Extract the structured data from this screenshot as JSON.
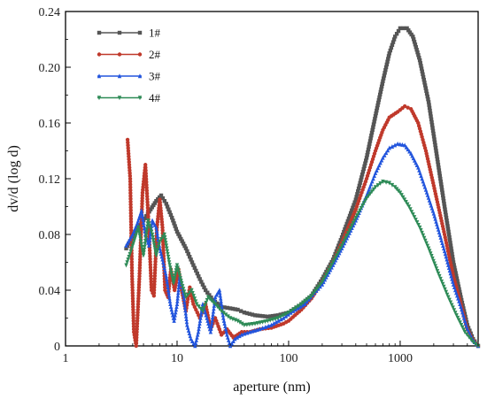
{
  "chart_data": {
    "type": "line",
    "xlabel": "aperture (nm)",
    "ylabel": "dv/d (log d)",
    "xscale": "log",
    "xlim": [
      1,
      5000
    ],
    "ylim": [
      0,
      0.24
    ],
    "xticks": [
      1,
      10,
      100,
      1000
    ],
    "xtick_labels": [
      "1",
      "10",
      "100",
      "1000"
    ],
    "yticks": [
      0,
      0.04,
      0.08,
      0.12,
      0.16,
      0.2,
      0.24
    ],
    "ytick_labels": [
      "0",
      "0.04",
      "0.08",
      "0.12",
      "0.16",
      "0.20",
      "0.24"
    ],
    "grid": false,
    "legend_position": "top-left",
    "series": [
      {
        "name": "1#",
        "color": "#555555",
        "marker": "square",
        "points": [
          [
            3.5,
            0.07
          ],
          [
            4.2,
            0.082
          ],
          [
            5,
            0.09
          ],
          [
            5.8,
            0.098
          ],
          [
            6.5,
            0.104
          ],
          [
            7.2,
            0.108
          ],
          [
            8,
            0.102
          ],
          [
            9,
            0.092
          ],
          [
            10,
            0.082
          ],
          [
            12,
            0.07
          ],
          [
            14,
            0.058
          ],
          [
            16,
            0.048
          ],
          [
            18,
            0.04
          ],
          [
            21,
            0.033
          ],
          [
            25,
            0.028
          ],
          [
            30,
            0.027
          ],
          [
            35,
            0.026
          ],
          [
            40,
            0.024
          ],
          [
            50,
            0.022
          ],
          [
            65,
            0.021
          ],
          [
            80,
            0.022
          ],
          [
            100,
            0.024
          ],
          [
            130,
            0.03
          ],
          [
            160,
            0.036
          ],
          [
            200,
            0.048
          ],
          [
            250,
            0.062
          ],
          [
            300,
            0.078
          ],
          [
            400,
            0.105
          ],
          [
            500,
            0.135
          ],
          [
            600,
            0.165
          ],
          [
            700,
            0.19
          ],
          [
            800,
            0.21
          ],
          [
            900,
            0.222
          ],
          [
            1000,
            0.228
          ],
          [
            1150,
            0.228
          ],
          [
            1300,
            0.222
          ],
          [
            1500,
            0.205
          ],
          [
            1800,
            0.175
          ],
          [
            2100,
            0.14
          ],
          [
            2500,
            0.1
          ],
          [
            3000,
            0.06
          ],
          [
            3500,
            0.035
          ],
          [
            4000,
            0.015
          ],
          [
            4500,
            0.005
          ],
          [
            5000,
            0
          ]
        ]
      },
      {
        "name": "2#",
        "color": "#c0392b",
        "marker": "circle",
        "points": [
          [
            3.6,
            0.148
          ],
          [
            3.8,
            0.12
          ],
          [
            3.95,
            0.05
          ],
          [
            4.1,
            0.01
          ],
          [
            4.3,
            0.0
          ],
          [
            4.6,
            0.05
          ],
          [
            4.9,
            0.11
          ],
          [
            5.2,
            0.13
          ],
          [
            5.5,
            0.095
          ],
          [
            5.9,
            0.04
          ],
          [
            6.2,
            0.036
          ],
          [
            6.6,
            0.085
          ],
          [
            7,
            0.105
          ],
          [
            7.4,
            0.085
          ],
          [
            7.8,
            0.04
          ],
          [
            8.3,
            0.035
          ],
          [
            8.8,
            0.055
          ],
          [
            9.5,
            0.04
          ],
          [
            10.3,
            0.055
          ],
          [
            11,
            0.04
          ],
          [
            12,
            0.025
          ],
          [
            13,
            0.042
          ],
          [
            14,
            0.03
          ],
          [
            16,
            0.02
          ],
          [
            18,
            0.03
          ],
          [
            20,
            0.012
          ],
          [
            22,
            0.02
          ],
          [
            25,
            0.008
          ],
          [
            28,
            0.012
          ],
          [
            32,
            0.006
          ],
          [
            38,
            0.01
          ],
          [
            45,
            0.01
          ],
          [
            55,
            0.012
          ],
          [
            70,
            0.013
          ],
          [
            90,
            0.016
          ],
          [
            100,
            0.018
          ],
          [
            130,
            0.026
          ],
          [
            160,
            0.034
          ],
          [
            200,
            0.046
          ],
          [
            250,
            0.06
          ],
          [
            300,
            0.074
          ],
          [
            400,
            0.098
          ],
          [
            500,
            0.12
          ],
          [
            600,
            0.14
          ],
          [
            700,
            0.155
          ],
          [
            800,
            0.164
          ],
          [
            950,
            0.168
          ],
          [
            1100,
            0.172
          ],
          [
            1250,
            0.17
          ],
          [
            1450,
            0.16
          ],
          [
            1700,
            0.14
          ],
          [
            2000,
            0.115
          ],
          [
            2500,
            0.08
          ],
          [
            3000,
            0.05
          ],
          [
            3500,
            0.03
          ],
          [
            4000,
            0.012
          ],
          [
            4500,
            0.004
          ],
          [
            5000,
            0
          ]
        ]
      },
      {
        "name": "3#",
        "color": "#2255dd",
        "marker": "triangle-up",
        "points": [
          [
            3.5,
            0.072
          ],
          [
            4,
            0.08
          ],
          [
            4.4,
            0.088
          ],
          [
            4.8,
            0.097
          ],
          [
            5.2,
            0.08
          ],
          [
            5.6,
            0.072
          ],
          [
            6,
            0.09
          ],
          [
            6.5,
            0.085
          ],
          [
            7,
            0.07
          ],
          [
            7.5,
            0.06
          ],
          [
            8,
            0.05
          ],
          [
            8.7,
            0.03
          ],
          [
            9.4,
            0.018
          ],
          [
            10,
            0.03
          ],
          [
            10.6,
            0.05
          ],
          [
            11.3,
            0.04
          ],
          [
            12.3,
            0.015
          ],
          [
            13.3,
            0.005
          ],
          [
            14.5,
            0.0
          ],
          [
            15.5,
            0.01
          ],
          [
            17,
            0.03
          ],
          [
            18.5,
            0.02
          ],
          [
            20,
            0.01
          ],
          [
            22,
            0.035
          ],
          [
            24,
            0.04
          ],
          [
            26,
            0.02
          ],
          [
            28,
            0.008
          ],
          [
            30,
            0.0
          ],
          [
            33,
            0.005
          ],
          [
            38,
            0.008
          ],
          [
            45,
            0.01
          ],
          [
            55,
            0.012
          ],
          [
            70,
            0.015
          ],
          [
            90,
            0.02
          ],
          [
            110,
            0.025
          ],
          [
            140,
            0.03
          ],
          [
            170,
            0.038
          ],
          [
            200,
            0.044
          ],
          [
            250,
            0.058
          ],
          [
            300,
            0.07
          ],
          [
            400,
            0.09
          ],
          [
            500,
            0.108
          ],
          [
            600,
            0.124
          ],
          [
            700,
            0.135
          ],
          [
            800,
            0.142
          ],
          [
            950,
            0.145
          ],
          [
            1100,
            0.144
          ],
          [
            1250,
            0.138
          ],
          [
            1450,
            0.128
          ],
          [
            1700,
            0.112
          ],
          [
            2000,
            0.095
          ],
          [
            2500,
            0.068
          ],
          [
            3000,
            0.044
          ],
          [
            3500,
            0.028
          ],
          [
            4000,
            0.012
          ],
          [
            4500,
            0.004
          ],
          [
            5000,
            0
          ]
        ]
      },
      {
        "name": "4#",
        "color": "#2e8b57",
        "marker": "triangle-down",
        "points": [
          [
            3.5,
            0.058
          ],
          [
            4,
            0.072
          ],
          [
            4.5,
            0.085
          ],
          [
            5,
            0.065
          ],
          [
            5.5,
            0.09
          ],
          [
            6,
            0.08
          ],
          [
            6.5,
            0.065
          ],
          [
            7,
            0.075
          ],
          [
            7.7,
            0.08
          ],
          [
            8.5,
            0.06
          ],
          [
            9.3,
            0.045
          ],
          [
            10,
            0.058
          ],
          [
            11,
            0.045
          ],
          [
            12,
            0.035
          ],
          [
            13.5,
            0.04
          ],
          [
            15,
            0.03
          ],
          [
            17,
            0.025
          ],
          [
            19,
            0.035
          ],
          [
            22,
            0.03
          ],
          [
            25,
            0.025
          ],
          [
            30,
            0.02
          ],
          [
            35,
            0.018
          ],
          [
            40,
            0.015
          ],
          [
            50,
            0.016
          ],
          [
            65,
            0.018
          ],
          [
            80,
            0.02
          ],
          [
            100,
            0.024
          ],
          [
            130,
            0.03
          ],
          [
            160,
            0.036
          ],
          [
            200,
            0.046
          ],
          [
            250,
            0.06
          ],
          [
            300,
            0.072
          ],
          [
            400,
            0.092
          ],
          [
            500,
            0.106
          ],
          [
            600,
            0.114
          ],
          [
            700,
            0.118
          ],
          [
            800,
            0.117
          ],
          [
            900,
            0.114
          ],
          [
            1000,
            0.11
          ],
          [
            1200,
            0.1
          ],
          [
            1500,
            0.085
          ],
          [
            1800,
            0.07
          ],
          [
            2200,
            0.052
          ],
          [
            2700,
            0.035
          ],
          [
            3200,
            0.022
          ],
          [
            3800,
            0.01
          ],
          [
            4500,
            0.003
          ],
          [
            5000,
            0
          ]
        ]
      }
    ]
  }
}
